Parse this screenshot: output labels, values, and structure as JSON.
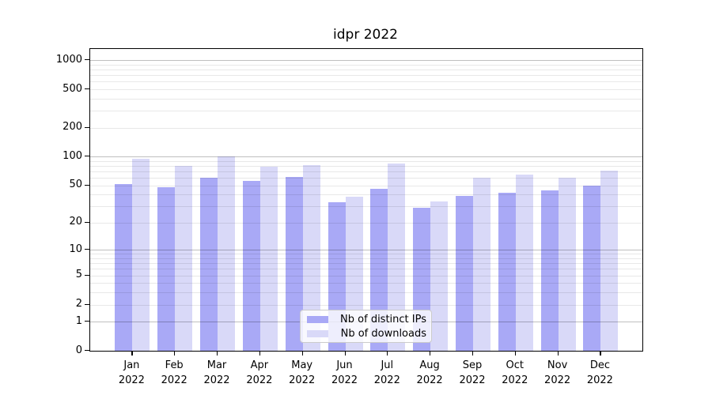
{
  "chart_data": {
    "type": "bar",
    "title": "idpr 2022",
    "categories": [
      "Jan",
      "Feb",
      "Mar",
      "Apr",
      "May",
      "Jun",
      "Jul",
      "Aug",
      "Sep",
      "Oct",
      "Nov",
      "Dec"
    ],
    "year_label": "2022",
    "series": [
      {
        "name": "Nb of distinct IPs",
        "color": "#a9a9f6",
        "values": [
          52,
          48,
          60,
          56,
          61,
          33,
          46,
          29,
          39,
          42,
          44,
          50
        ]
      },
      {
        "name": "Nb of downloads",
        "color": "#d9d9f8",
        "values": [
          95,
          80,
          100,
          79,
          82,
          38,
          85,
          34,
          60,
          65,
          60,
          72
        ]
      }
    ],
    "yticks": [
      0,
      1,
      2,
      5,
      10,
      20,
      50,
      100,
      200,
      500,
      1000
    ],
    "minor_gridlines": [
      2,
      3,
      4,
      5,
      6,
      7,
      8,
      9,
      20,
      30,
      40,
      50,
      60,
      70,
      80,
      90,
      200,
      300,
      400,
      500,
      600,
      700,
      800,
      900
    ],
    "major_gridlines": [
      1,
      10,
      100,
      1000
    ],
    "scale": "log(1+x)",
    "ylim": [
      0,
      1330
    ],
    "xlabel": "",
    "ylabel": "",
    "grid": "on",
    "legend_position": "lower center",
    "axis_color": "#000000",
    "major_grid_color": "#c2c2c2",
    "minor_grid_color": "#e9e9e9"
  }
}
